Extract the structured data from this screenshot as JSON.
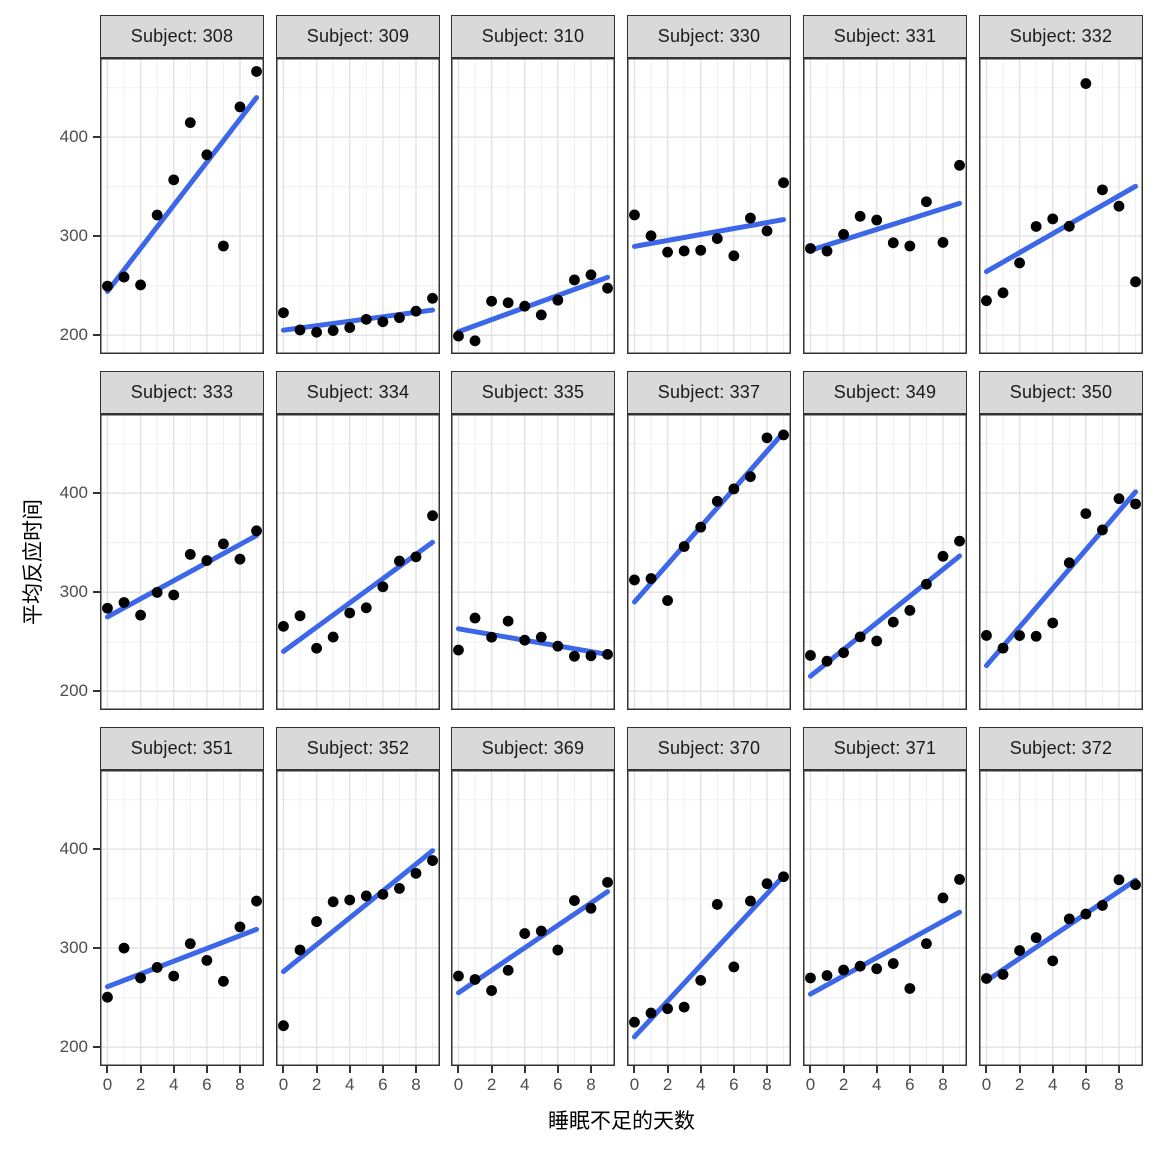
{
  "style": {
    "background": "#ffffff",
    "panel_fill": "#ffffff",
    "panel_border": "#333333",
    "strip_fill": "#d9d9d9",
    "strip_text_color": "#1a1a1a",
    "grid_major": "#e2e2e2",
    "grid_minor": "#efefef",
    "tick_mark_color": "#333333",
    "tick_label_color": "#4d4d4d",
    "line_color": "#3b67e8",
    "point_color": "#000000"
  },
  "chart_data": {
    "type": "scatter",
    "xlabel": "睡眠不足的天数",
    "ylabel": "平均反应时间",
    "facet_label_prefix": "Subject: ",
    "x": [
      0,
      1,
      2,
      3,
      4,
      5,
      6,
      7,
      8,
      9
    ],
    "xlim": [
      -0.45,
      9.45
    ],
    "ylim": [
      181,
      480
    ],
    "x_ticks": [
      0,
      2,
      4,
      6,
      8
    ],
    "y_ticks": [
      200,
      300,
      400
    ],
    "x_minor_gridlines": [
      1,
      3,
      5,
      7,
      9
    ],
    "y_minor_gridlines": [
      250,
      350,
      450
    ],
    "grid": true,
    "legend": "none",
    "layout": {
      "rows": 3,
      "cols": 6
    },
    "facets": [
      {
        "subject": "308",
        "values": [
          249.6,
          258.7,
          250.8,
          321.4,
          356.9,
          414.7,
          382.2,
          290.1,
          430.6,
          466.4
        ],
        "fit": {
          "intercept": 244.19,
          "slope": 21.76
        }
      },
      {
        "subject": "309",
        "values": [
          222.7,
          205.3,
          203.0,
          204.7,
          207.7,
          216.0,
          213.6,
          217.7,
          224.3,
          237.3
        ],
        "fit": {
          "intercept": 205.05,
          "slope": 2.26
        }
      },
      {
        "subject": "310",
        "values": [
          199.1,
          194.3,
          234.3,
          232.8,
          229.3,
          220.5,
          235.4,
          255.8,
          261.0,
          247.5
        ],
        "fit": {
          "intercept": 203.48,
          "slope": 6.11
        }
      },
      {
        "subject": "330",
        "values": [
          321.5,
          300.4,
          283.9,
          285.1,
          285.8,
          297.6,
          280.2,
          318.3,
          305.3,
          354.0
        ],
        "fit": {
          "intercept": 289.69,
          "slope": 3.01
        }
      },
      {
        "subject": "331",
        "values": [
          287.6,
          285.0,
          301.8,
          320.1,
          316.3,
          293.3,
          290.1,
          334.8,
          293.7,
          371.6
        ],
        "fit": {
          "intercept": 285.74,
          "slope": 5.27
        }
      },
      {
        "subject": "332",
        "values": [
          234.9,
          242.8,
          273.0,
          309.8,
          317.5,
          310.0,
          454.2,
          346.8,
          330.3,
          253.9
        ],
        "fit": {
          "intercept": 264.25,
          "slope": 9.57
        }
      },
      {
        "subject": "333",
        "values": [
          283.8,
          289.6,
          276.8,
          299.8,
          297.2,
          338.2,
          332.0,
          348.8,
          333.4,
          362.0
        ],
        "fit": {
          "intercept": 275.02,
          "slope": 9.14
        }
      },
      {
        "subject": "334",
        "values": [
          265.5,
          276.2,
          243.4,
          254.7,
          279.0,
          284.2,
          305.5,
          331.5,
          335.7,
          377.3
        ],
        "fit": {
          "intercept": 240.16,
          "slope": 12.25
        }
      },
      {
        "subject": "335",
        "values": [
          241.6,
          273.9,
          254.5,
          270.8,
          251.5,
          254.6,
          245.5,
          235.3,
          235.8,
          237.2
        ],
        "fit": {
          "intercept": 263.03,
          "slope": -2.88
        }
      },
      {
        "subject": "337",
        "values": [
          312.4,
          313.8,
          291.6,
          346.1,
          365.7,
          391.8,
          404.3,
          416.7,
          455.9,
          458.9
        ],
        "fit": {
          "intercept": 290.1,
          "slope": 19.03
        }
      },
      {
        "subject": "349",
        "values": [
          236.1,
          230.3,
          238.9,
          254.9,
          250.7,
          269.8,
          281.6,
          308.1,
          336.3,
          351.6
        ],
        "fit": {
          "intercept": 215.11,
          "slope": 13.49
        }
      },
      {
        "subject": "350",
        "values": [
          256.3,
          243.5,
          256.2,
          255.5,
          268.9,
          329.7,
          379.4,
          362.9,
          394.5,
          389.1
        ],
        "fit": {
          "intercept": 225.83,
          "slope": 19.5
        }
      },
      {
        "subject": "351",
        "values": [
          250.5,
          300.1,
          269.9,
          280.6,
          271.8,
          304.6,
          287.7,
          266.6,
          321.5,
          347.6
        ],
        "fit": {
          "intercept": 261.15,
          "slope": 6.43
        }
      },
      {
        "subject": "352",
        "values": [
          221.7,
          298.2,
          326.9,
          346.9,
          348.7,
          352.8,
          354.4,
          360.4,
          375.6,
          388.5
        ],
        "fit": {
          "intercept": 276.37,
          "slope": 13.57
        }
      },
      {
        "subject": "369",
        "values": [
          271.9,
          268.4,
          257.2,
          277.7,
          314.8,
          317.3,
          298.1,
          348.1,
          340.3,
          366.5
        ],
        "fit": {
          "intercept": 254.97,
          "slope": 11.35
        }
      },
      {
        "subject": "370",
        "values": [
          225.3,
          234.5,
          238.9,
          240.5,
          267.5,
          344.2,
          281.1,
          347.6,
          365.2,
          372.2
        ],
        "fit": {
          "intercept": 210.45,
          "slope": 18.06
        }
      },
      {
        "subject": "371",
        "values": [
          269.9,
          272.4,
          277.9,
          281.8,
          279.2,
          284.5,
          259.3,
          304.6,
          350.8,
          369.5
        ],
        "fit": {
          "intercept": 253.64,
          "slope": 9.19
        }
      },
      {
        "subject": "372",
        "values": [
          269.4,
          273.5,
          297.6,
          310.6,
          287.2,
          329.6,
          334.5,
          343.2,
          369.1,
          364.1
        ],
        "fit": {
          "intercept": 267.04,
          "slope": 11.3
        }
      }
    ]
  }
}
